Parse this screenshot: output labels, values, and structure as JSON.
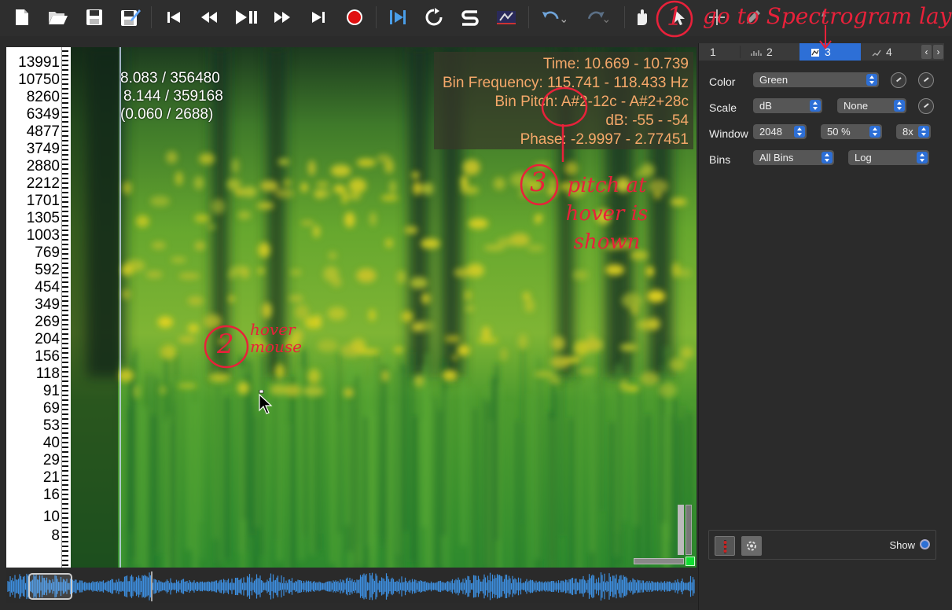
{
  "toolbar": {
    "buttons": [
      "new-document",
      "open-folder",
      "save",
      "save-as",
      "skip-to-start",
      "rewind",
      "play-pause",
      "fast-forward",
      "skip-to-end",
      "record",
      "play-selection",
      "loop",
      "solo",
      "monitor",
      "undo",
      "redo",
      "navigate-tool",
      "select-tool",
      "move-tool",
      "edit-tool",
      "draw-tool"
    ]
  },
  "spectrogram": {
    "frequency_scale": [
      "13991",
      "10750",
      "8260",
      "6349",
      "4877",
      "3749",
      "2880",
      "2212",
      "1701",
      "1305",
      "1003",
      "769",
      "592",
      "454",
      "349",
      "269",
      "204",
      "156",
      "118",
      "91",
      "69",
      "53",
      "40",
      "29",
      "21",
      "16",
      "10",
      "8"
    ],
    "hover_info": [
      "8.083 / 356480",
      "8.144 / 359168",
      "(0.060 / 2688)"
    ],
    "readout": {
      "time": "Time: 10.669 - 10.739",
      "bin_frequency": "Bin Frequency: 115.741 - 118.433 Hz",
      "bin_pitch": "Bin Pitch: A#2-12c - A#2+28c",
      "db": "dB: -55 - -54",
      "phase": "Phase: -2.9997 - 2.77451"
    }
  },
  "layer_tabs": [
    {
      "label": "1",
      "icon": "waveform-icon"
    },
    {
      "label": "2",
      "icon": "spectrum-icon"
    },
    {
      "label": "3",
      "icon": "spectrogram-icon",
      "active": true
    },
    {
      "label": "4",
      "icon": "time-values-icon"
    }
  ],
  "properties": {
    "color_label": "Color",
    "color_value": "Green",
    "scale_label": "Scale",
    "scale_value": "dB",
    "normalize_value": "None",
    "window_label": "Window",
    "window_size": "2048",
    "window_overlap": "50 %",
    "oversampling": "8x",
    "bins_label": "Bins",
    "bins_value": "All Bins",
    "bins_scale": "Log",
    "show_label": "Show"
  },
  "annotations": {
    "step1": "go to Spectrogram layer",
    "step1_num": "1",
    "step2": "hover mouse",
    "step2_num": "2",
    "step3_num": "3",
    "step3": "pitch at hover is shown"
  },
  "colors": {
    "accent": "#2d6fd6",
    "annotation": "#e8213a",
    "readout_text": "#f5a86a",
    "spectrogram_low": "#1a3d1a",
    "spectrogram_high": "#e8d21c"
  }
}
